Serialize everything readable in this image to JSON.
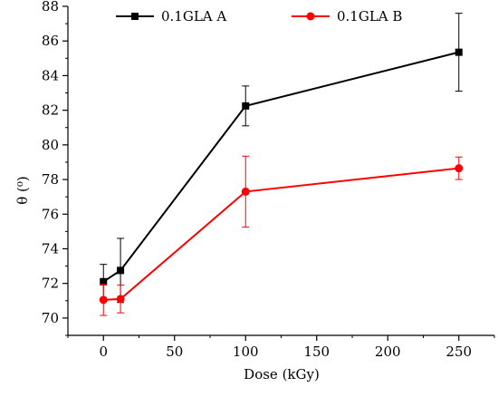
{
  "chart_data": {
    "type": "line",
    "title": "",
    "xlabel": "Dose (kGy)",
    "ylabel": "θ (⁰)",
    "xlim": [
      -25,
      275
    ],
    "ylim": [
      69,
      88
    ],
    "x_ticks": [
      0,
      50,
      100,
      150,
      200,
      250
    ],
    "y_ticks": [
      70,
      72,
      74,
      76,
      78,
      80,
      82,
      84,
      86,
      88
    ],
    "grid": false,
    "legend_position": "top",
    "series": [
      {
        "name": "0.1GLA A",
        "color": "#000000",
        "marker": "square",
        "x": [
          0,
          12,
          100,
          250
        ],
        "y": [
          72.1,
          72.75,
          82.25,
          85.35
        ],
        "error": [
          1.0,
          1.85,
          1.15,
          2.25
        ]
      },
      {
        "name": "0.1GLA B",
        "color": "#ff0000",
        "marker": "circle",
        "x": [
          0,
          12,
          100,
          250
        ],
        "y": [
          71.05,
          71.1,
          77.3,
          78.65
        ],
        "error": [
          0.9,
          0.8,
          2.05,
          0.65
        ]
      }
    ]
  }
}
